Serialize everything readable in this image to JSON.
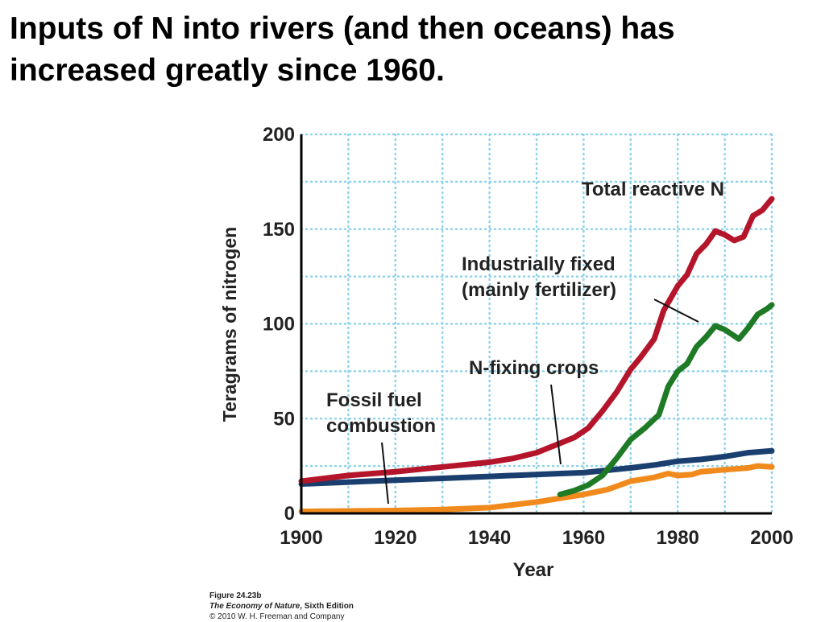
{
  "slide": {
    "title_line1": "Inputs of N into rivers (and then oceans) has",
    "title_line2": "increased greatly since 1960."
  },
  "chart_data": {
    "type": "line",
    "title": "",
    "xlabel": "Year",
    "ylabel": "Teragrams of nitrogen",
    "xlim": [
      1900,
      2000
    ],
    "ylim": [
      0,
      200
    ],
    "xticks": [
      1900,
      1920,
      1940,
      1960,
      1980,
      2000
    ],
    "yticks": [
      0,
      50,
      100,
      150,
      200
    ],
    "grid": true,
    "series": [
      {
        "name": "Total reactive N",
        "color": "#b5152b",
        "x": [
          1900,
          1910,
          1920,
          1930,
          1940,
          1945,
          1950,
          1952,
          1955,
          1958,
          1961,
          1964,
          1967,
          1970,
          1972,
          1975,
          1977,
          1980,
          1982,
          1984,
          1986,
          1988,
          1990,
          1992,
          1994,
          1996,
          1998,
          2000
        ],
        "y": [
          17,
          20,
          22,
          24.5,
          27,
          29,
          32,
          34,
          37,
          40,
          45,
          54,
          64,
          76,
          82,
          92,
          107,
          120,
          126,
          137,
          142,
          149,
          147,
          144,
          146,
          157,
          160,
          166
        ]
      },
      {
        "name": "N-fixing crops",
        "color": "#1a3f6f",
        "x": [
          1900,
          1920,
          1940,
          1955,
          1960,
          1970,
          1975,
          1980,
          1985,
          1990,
          1995,
          2000
        ],
        "y": [
          15.5,
          17.5,
          19.5,
          21,
          21.5,
          24,
          25.5,
          27.5,
          28.5,
          30,
          32,
          33
        ]
      },
      {
        "name": "Industrially fixed (mainly fertilizer)",
        "color": "#1e7a25",
        "x": [
          1955,
          1958,
          1961,
          1964,
          1967,
          1970,
          1973,
          1976,
          1978,
          1980,
          1982,
          1984,
          1986,
          1988,
          1990,
          1993,
          1995,
          1997,
          1999,
          2000
        ],
        "y": [
          10,
          12,
          15,
          20,
          29,
          39,
          45,
          52,
          67,
          75,
          79,
          88,
          93,
          99,
          97,
          92,
          98,
          105,
          108,
          110
        ]
      },
      {
        "name": "Fossil fuel combustion",
        "color": "#f08a1d",
        "x": [
          1900,
          1920,
          1930,
          1940,
          1950,
          1960,
          1965,
          1970,
          1975,
          1978,
          1980,
          1983,
          1985,
          1990,
          1995,
          1997,
          2000
        ],
        "y": [
          1,
          1.5,
          2,
          3,
          6,
          10,
          12.5,
          17,
          19,
          21,
          20,
          20.5,
          22,
          23,
          24,
          25,
          24.5
        ]
      }
    ],
    "annotations": [
      {
        "series": "Total reactive N",
        "lines": [
          "Total reactive N"
        ]
      },
      {
        "series": "Industrially fixed (mainly fertilizer)",
        "lines": [
          "Industrially fixed",
          "(mainly fertilizer)"
        ]
      },
      {
        "series": "N-fixing crops",
        "lines": [
          "N-fixing crops"
        ]
      },
      {
        "series": "Fossil fuel combustion",
        "lines": [
          "Fossil fuel",
          "combustion"
        ]
      }
    ]
  },
  "caption": {
    "figure": "Figure 24.23b",
    "book_title": "The Economy of Nature",
    "book_edition": ", Sixth Edition",
    "copyright": "© 2010 W. H. Freeman and Company"
  }
}
